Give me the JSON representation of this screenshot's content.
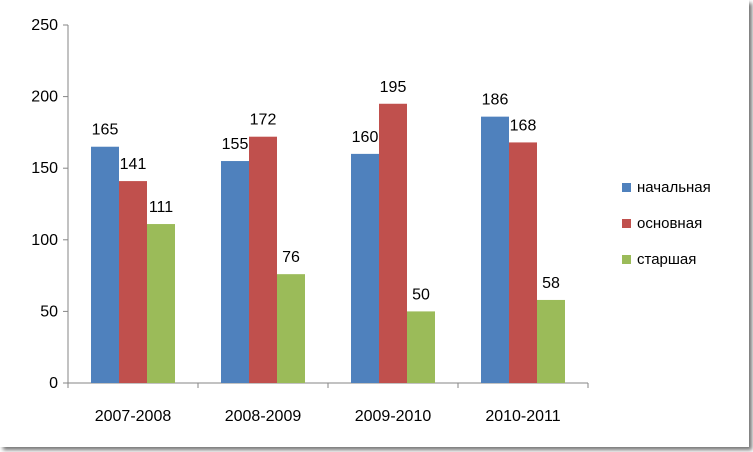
{
  "chart_data": {
    "type": "bar",
    "categories": [
      "2007-2008",
      "2008-2009",
      "2009-2010",
      "2010-2011"
    ],
    "series": [
      {
        "name": "начальная",
        "values": [
          165,
          155,
          160,
          186
        ],
        "color": "#4F81BD"
      },
      {
        "name": "основная",
        "values": [
          141,
          172,
          195,
          168
        ],
        "color": "#C0504D"
      },
      {
        "name": "старшая",
        "values": [
          111,
          76,
          50,
          58
        ],
        "color": "#9BBB59"
      }
    ],
    "title": "",
    "xlabel": "",
    "ylabel": "",
    "ylim": [
      0,
      250
    ],
    "yticks": [
      0,
      50,
      100,
      150,
      200,
      250
    ],
    "grid": false,
    "legend_position": "right",
    "data_labels": true
  }
}
